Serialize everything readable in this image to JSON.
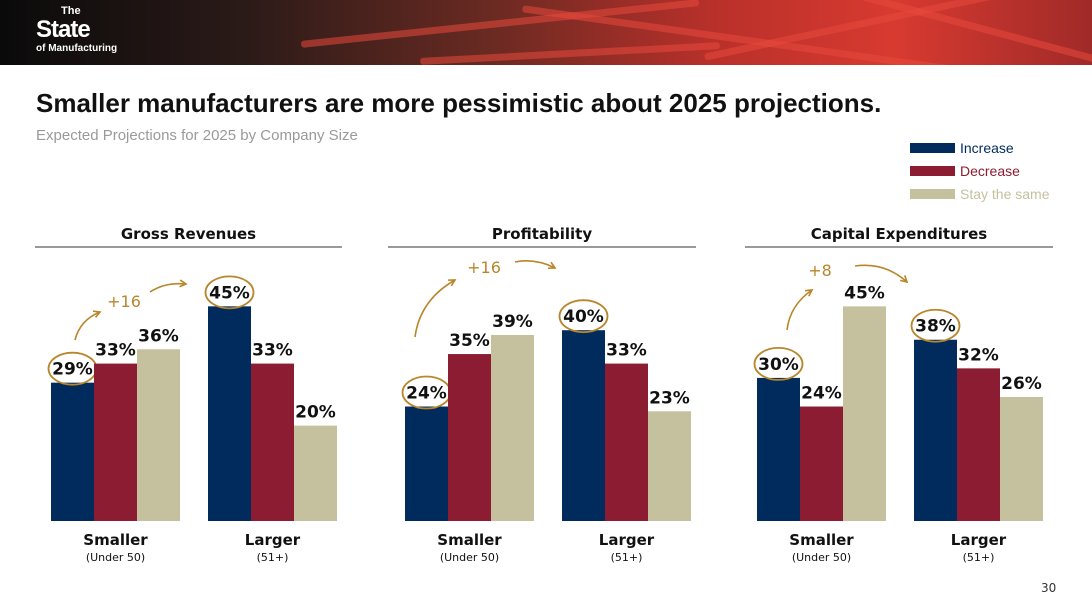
{
  "logo": {
    "line1": "The",
    "line2": "State",
    "line3": "of Manufacturing"
  },
  "title": "Smaller manufacturers are more pessimistic about 2025 projections.",
  "subtitle": "Expected Projections for 2025 by Company Size",
  "legend": [
    {
      "label": "Increase",
      "color": "#002b5c"
    },
    {
      "label": "Decrease",
      "color": "#8b1c31"
    },
    {
      "label": "Stay the same",
      "color": "#c5c19e"
    }
  ],
  "page_number": "30",
  "chart_data": [
    {
      "type": "bar",
      "title": "Gross Revenues",
      "categories": [
        {
          "label": "Smaller",
          "sub": "(Under 50)"
        },
        {
          "label": "Larger",
          "sub": "(51+)"
        }
      ],
      "series": [
        {
          "name": "Increase",
          "values": [
            29,
            45
          ]
        },
        {
          "name": "Decrease",
          "values": [
            33,
            33
          ]
        },
        {
          "name": "Stay the same",
          "values": [
            36,
            20
          ]
        }
      ],
      "annotation": "+16",
      "ylim": [
        0,
        50
      ]
    },
    {
      "type": "bar",
      "title": "Profitability",
      "categories": [
        {
          "label": "Smaller",
          "sub": "(Under 50)"
        },
        {
          "label": "Larger",
          "sub": "(51+)"
        }
      ],
      "series": [
        {
          "name": "Increase",
          "values": [
            24,
            40
          ]
        },
        {
          "name": "Decrease",
          "values": [
            35,
            33
          ]
        },
        {
          "name": "Stay the same",
          "values": [
            39,
            23
          ]
        }
      ],
      "annotation": "+16",
      "ylim": [
        0,
        50
      ]
    },
    {
      "type": "bar",
      "title": "Capital Expenditures",
      "categories": [
        {
          "label": "Smaller",
          "sub": "(Under 50)"
        },
        {
          "label": "Larger",
          "sub": "(51+)"
        }
      ],
      "series": [
        {
          "name": "Increase",
          "values": [
            30,
            38
          ]
        },
        {
          "name": "Decrease",
          "values": [
            24,
            32
          ]
        },
        {
          "name": "Stay the same",
          "values": [
            45,
            26
          ]
        }
      ],
      "annotation": "+8",
      "ylim": [
        0,
        50
      ]
    }
  ],
  "annotation_color": "#b8862b"
}
